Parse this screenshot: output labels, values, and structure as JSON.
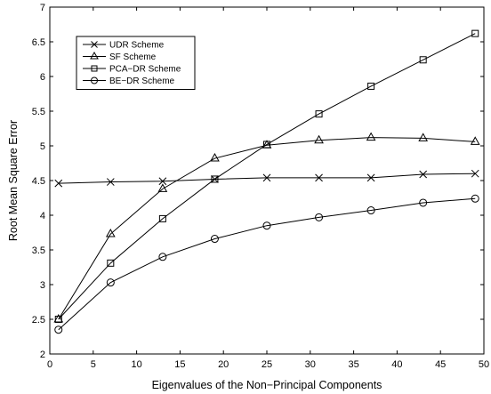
{
  "chart_data": {
    "type": "line",
    "title": "",
    "xlabel": "Eigenvalues of the Non−Principal Components",
    "ylabel": "Root Mean Square Error",
    "xlim": [
      0,
      50
    ],
    "ylim": [
      2,
      7
    ],
    "xticks": [
      "0",
      "5",
      "10",
      "15",
      "20",
      "25",
      "30",
      "35",
      "40",
      "45",
      "50"
    ],
    "yticks": [
      "2",
      "2.5",
      "3",
      "3.5",
      "4",
      "4.5",
      "5",
      "5.5",
      "6",
      "6.5",
      "7"
    ],
    "grid": false,
    "legend_position": "top-left",
    "x": [
      1,
      7,
      13,
      19,
      25,
      31,
      37,
      43,
      49
    ],
    "series": [
      {
        "name": "UDR Scheme",
        "marker": "x",
        "values": [
          4.46,
          4.48,
          4.49,
          4.52,
          4.54,
          4.54,
          4.54,
          4.59,
          4.6
        ]
      },
      {
        "name": "SF Scheme",
        "marker": "triangle",
        "values": [
          2.5,
          3.73,
          4.38,
          4.82,
          5.01,
          5.08,
          5.12,
          5.11,
          5.06
        ]
      },
      {
        "name": "PCA−DR Scheme",
        "marker": "square",
        "values": [
          2.5,
          3.31,
          3.95,
          4.52,
          5.02,
          5.46,
          5.86,
          6.24,
          6.62
        ]
      },
      {
        "name": "BE−DR Scheme",
        "marker": "circle",
        "values": [
          2.35,
          3.03,
          3.4,
          3.66,
          3.85,
          3.97,
          4.07,
          4.18,
          4.24
        ]
      }
    ]
  }
}
